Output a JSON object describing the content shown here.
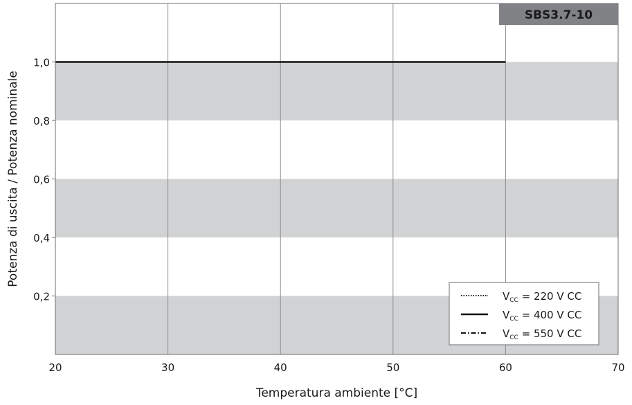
{
  "chart_data": {
    "type": "line",
    "title": "SBS3.7-10",
    "xlabel": "Temperatura ambiente [°C]",
    "ylabel": "Potenza di uscita / Potenza nominale",
    "xlim": [
      20,
      70
    ],
    "ylim": [
      0,
      1.2
    ],
    "xticks": [
      20,
      30,
      40,
      50,
      60,
      70
    ],
    "x_tick_labels": [
      "20",
      "30",
      "40",
      "50",
      "60",
      "70"
    ],
    "yticks": [
      0.2,
      0.4,
      0.6,
      0.8,
      1.0
    ],
    "y_tick_labels": [
      "0,2",
      "0,4",
      "0,6",
      "0,8",
      "1,0"
    ],
    "grid": {
      "vertical_lines": true,
      "horizontal_bands": true
    },
    "band_color": "#d1d2d4",
    "legend_position": "bottom-right",
    "series": [
      {
        "name_prefix": "V",
        "name_sub": "CC",
        "name_rest": " = 220 V CC",
        "style": "dotted",
        "x": [
          20,
          60
        ],
        "y": [
          1.0,
          1.0
        ]
      },
      {
        "name_prefix": "V",
        "name_sub": "CC",
        "name_rest": " = 400 V CC",
        "style": "solid",
        "x": [
          20,
          60
        ],
        "y": [
          1.0,
          1.0
        ]
      },
      {
        "name_prefix": "V",
        "name_sub": "CC",
        "name_rest": " = 550 V CC",
        "style": "dashdot",
        "x": [
          20,
          60
        ],
        "y": [
          1.0,
          1.0
        ]
      }
    ]
  }
}
